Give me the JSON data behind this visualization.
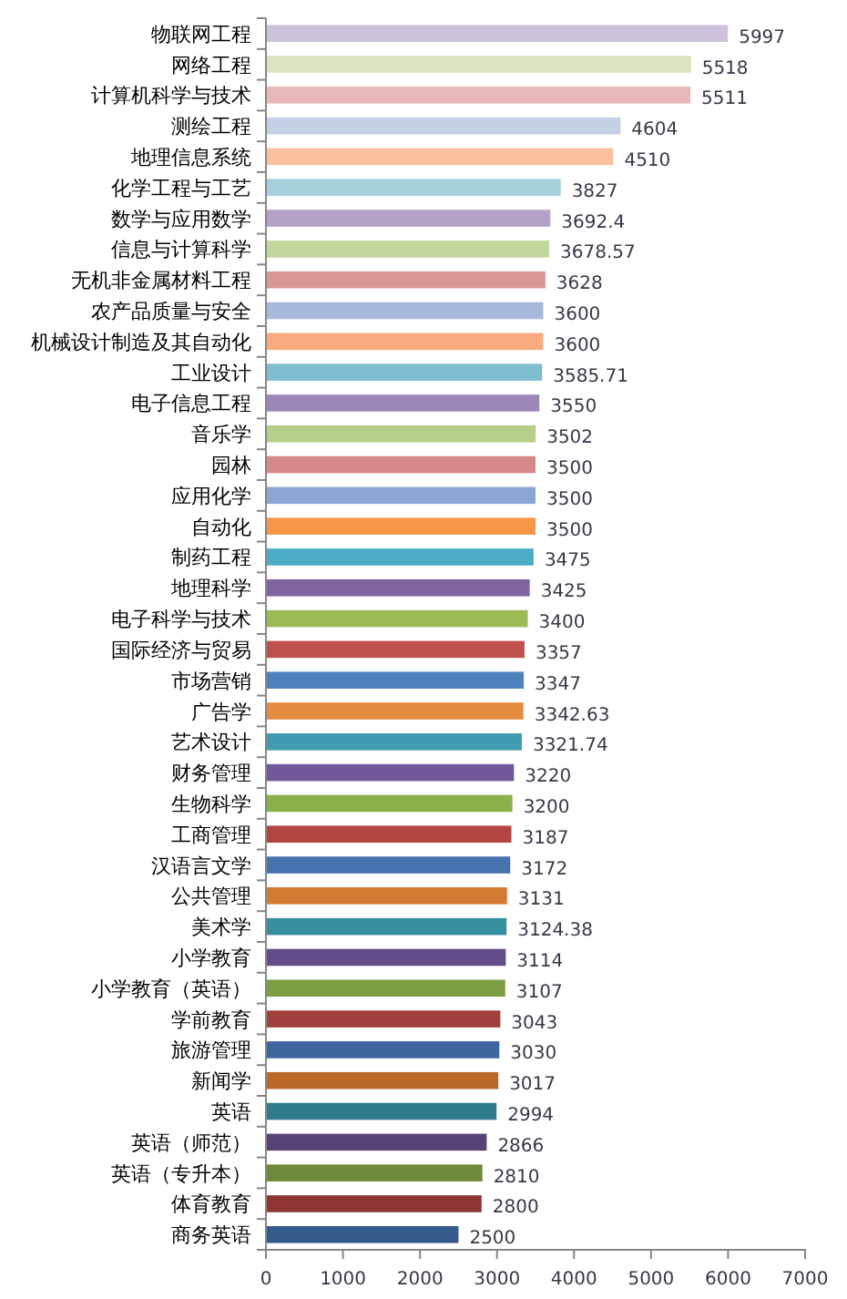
{
  "chart_data": {
    "type": "bar",
    "orientation": "horizontal",
    "categories": [
      "物联网工程",
      "网络工程",
      "计算机科学与技术",
      "测绘工程",
      "地理信息系统",
      "化学工程与工艺",
      "数学与应用数学",
      "信息与计算科学",
      "无机非金属材料工程",
      "农产品质量与安全",
      "机械设计制造及其自动化",
      "工业设计",
      "电子信息工程",
      "音乐学",
      "园林",
      "应用化学",
      "自动化",
      "制药工程",
      "地理科学",
      "电子科学与技术",
      "国际经济与贸易",
      "市场营销",
      "广告学",
      "艺术设计",
      "财务管理",
      "生物科学",
      "工商管理",
      "汉语言文学",
      "公共管理",
      "美术学",
      "小学教育",
      "小学教育（英语）",
      "学前教育",
      "旅游管理",
      "新闻学",
      "英语",
      "英语（师范）",
      "英语（专升本）",
      "体育教育",
      "商务英语"
    ],
    "values": [
      5997,
      5518,
      5511,
      4604,
      4510,
      3827,
      3692.4,
      3678.57,
      3628,
      3600,
      3600,
      3585.71,
      3550,
      3502,
      3500,
      3500,
      3500,
      3475,
      3425,
      3400,
      3357,
      3347,
      3342.63,
      3321.74,
      3220,
      3200,
      3187,
      3172,
      3131,
      3124.38,
      3114,
      3107,
      3043,
      3030,
      3017,
      2994,
      2866,
      2810,
      2800,
      2500
    ],
    "colors": [
      "#ccc1da",
      "#d7e4bd",
      "#e6b9b8",
      "#c3d0e6",
      "#fcc09e",
      "#a6d0dc",
      "#b3a2c7",
      "#c3d69b",
      "#d99694",
      "#a6b9da",
      "#f9ab7d",
      "#7fbed0",
      "#9c88b8",
      "#b5cf89",
      "#d48888",
      "#8aa7d4",
      "#f79646",
      "#4bacc6",
      "#8064a2",
      "#9bbb59",
      "#c0504d",
      "#4f81bd",
      "#e48b3f",
      "#3f9cb2",
      "#70589a",
      "#8ab04a",
      "#b04542",
      "#4672ad",
      "#d47b32",
      "#36909f",
      "#634d8a",
      "#7d9e43",
      "#a03f3b",
      "#3e66a0",
      "#b9692a",
      "#2f7c8d",
      "#574477",
      "#6c8a37",
      "#8e3633",
      "#355a8c"
    ],
    "xlim": [
      0,
      7000
    ],
    "xticks": [
      0,
      1000,
      2000,
      3000,
      4000,
      5000,
      6000,
      7000
    ],
    "data_labels": true
  }
}
